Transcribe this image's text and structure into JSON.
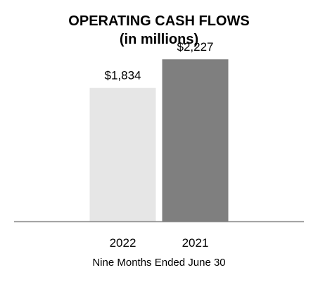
{
  "chart_data": {
    "type": "bar",
    "title": "OPERATING CASH FLOWS",
    "subtitle": "(in millions)",
    "categories": [
      "2022",
      "2021"
    ],
    "values": [
      1834,
      2227
    ],
    "data_labels": [
      "$1,834",
      "$2,227"
    ],
    "bar_colors": [
      "#e6e6e6",
      "#7f7f7f"
    ],
    "xlabel": "Nine Months Ended June 30",
    "ylabel": "",
    "ylim": [
      0,
      2500
    ],
    "grid": false,
    "axis_color": "#8c8c8c"
  }
}
